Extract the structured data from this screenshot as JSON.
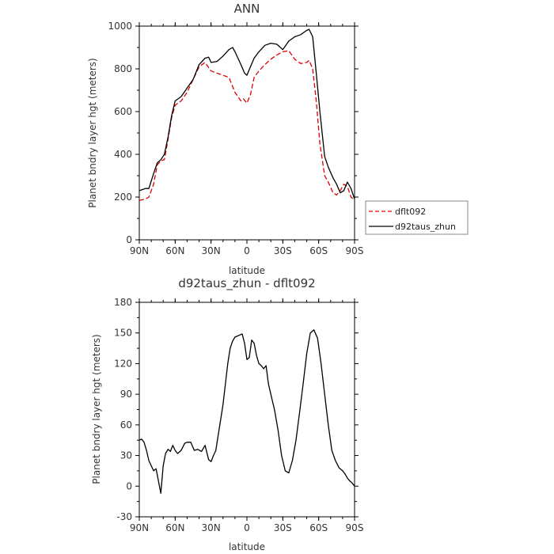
{
  "chart_data": [
    {
      "type": "line",
      "title": "ANN",
      "xlabel": "latitude",
      "ylabel": "Planet bndry layer hgt (meters)",
      "xlim": [
        90,
        -90
      ],
      "ylim": [
        0,
        1000
      ],
      "xticks": [
        90,
        60,
        30,
        0,
        -30,
        -60,
        -90
      ],
      "xtick_labels": [
        "90N",
        "60N",
        "30N",
        "0",
        "30S",
        "60S",
        "90S"
      ],
      "yticks": [
        0,
        200,
        400,
        600,
        800,
        1000
      ],
      "ytick_labels": [
        "0",
        "200",
        "400",
        "600",
        "800",
        "1000"
      ],
      "legend_position": "outside-right",
      "series": [
        {
          "name": "dflt092",
          "color": "#dd0000",
          "dash": "dashed",
          "x": [
            90,
            85,
            82,
            78,
            75,
            72,
            69,
            66,
            63,
            60,
            55,
            50,
            45,
            40,
            35,
            30,
            25,
            20,
            15,
            10,
            5,
            3,
            0,
            -3,
            -6,
            -10,
            -15,
            -20,
            -25,
            -30,
            -35,
            -40,
            -45,
            -50,
            -52,
            -55,
            -58,
            -61,
            -65,
            -68,
            -72,
            -75,
            -78,
            -81,
            -84,
            -87,
            -90
          ],
          "y": [
            185,
            190,
            200,
            260,
            350,
            370,
            375,
            470,
            570,
            630,
            650,
            690,
            750,
            810,
            830,
            790,
            780,
            770,
            760,
            690,
            650,
            660,
            640,
            680,
            760,
            790,
            820,
            845,
            865,
            880,
            885,
            845,
            825,
            830,
            840,
            800,
            650,
            450,
            300,
            270,
            220,
            210,
            230,
            260,
            250,
            200,
            185
          ]
        },
        {
          "name": "d92taus_zhun",
          "color": "#000000",
          "dash": "solid",
          "x": [
            90,
            85,
            82,
            78,
            75,
            72,
            69,
            66,
            63,
            60,
            55,
            50,
            45,
            40,
            35,
            32,
            30,
            25,
            20,
            15,
            12,
            10,
            5,
            2,
            0,
            -3,
            -6,
            -10,
            -15,
            -20,
            -25,
            -30,
            -35,
            -40,
            -45,
            -50,
            -52,
            -55,
            -58,
            -61,
            -65,
            -68,
            -72,
            -75,
            -78,
            -81,
            -84,
            -87,
            -90
          ],
          "y": [
            230,
            240,
            240,
            310,
            360,
            375,
            400,
            480,
            580,
            650,
            670,
            710,
            750,
            820,
            850,
            855,
            830,
            835,
            860,
            890,
            900,
            880,
            820,
            780,
            770,
            810,
            850,
            880,
            910,
            920,
            915,
            890,
            930,
            950,
            960,
            980,
            985,
            950,
            780,
            600,
            390,
            340,
            290,
            260,
            220,
            230,
            270,
            240,
            190
          ]
        }
      ]
    },
    {
      "type": "line",
      "title": "d92taus_zhun - dflt092",
      "xlabel": "latitude",
      "ylabel": "Planet bndry layer hgt (meters)",
      "xlim": [
        90,
        -90
      ],
      "ylim": [
        -30,
        180
      ],
      "xticks": [
        90,
        60,
        30,
        0,
        -30,
        -60,
        -90
      ],
      "xtick_labels": [
        "90N",
        "60N",
        "30N",
        "0",
        "30S",
        "60S",
        "90S"
      ],
      "yticks": [
        -30,
        0,
        30,
        60,
        90,
        120,
        150,
        180
      ],
      "ytick_labels": [
        "-30",
        "0",
        "30",
        "60",
        "90",
        "120",
        "150",
        "180"
      ],
      "series": [
        {
          "color": "#000000",
          "dash": "solid",
          "x": [
            90,
            88,
            86,
            84,
            82,
            80,
            78,
            76,
            74,
            72,
            70,
            68,
            66,
            64,
            62,
            60,
            58,
            55,
            52,
            50,
            47,
            44,
            41,
            38,
            35,
            32,
            30,
            28,
            26,
            24,
            22,
            20,
            18,
            16,
            14,
            12,
            10,
            8,
            6,
            4,
            2,
            0,
            -2,
            -4,
            -6,
            -8,
            -10,
            -12,
            -14,
            -16,
            -18,
            -20,
            -23,
            -26,
            -29,
            -32,
            -35,
            -38,
            -41,
            -44,
            -47,
            -50,
            -53,
            -56,
            -59,
            -62,
            -65,
            -68,
            -71,
            -74,
            -77,
            -80,
            -82,
            -84,
            -86,
            -88,
            -90
          ],
          "y": [
            45,
            46,
            43,
            35,
            25,
            20,
            15,
            17,
            5,
            -7,
            20,
            32,
            36,
            34,
            40,
            35,
            32,
            35,
            42,
            43,
            43,
            35,
            36,
            34,
            40,
            26,
            24,
            30,
            35,
            50,
            65,
            80,
            100,
            120,
            135,
            142,
            146,
            147,
            148,
            149,
            140,
            124,
            126,
            143,
            140,
            128,
            120,
            118,
            115,
            118,
            100,
            90,
            75,
            55,
            30,
            15,
            13,
            25,
            45,
            72,
            100,
            130,
            150,
            153,
            145,
            120,
            90,
            60,
            35,
            25,
            18,
            15,
            12,
            8,
            5,
            3,
            0
          ]
        }
      ]
    }
  ]
}
